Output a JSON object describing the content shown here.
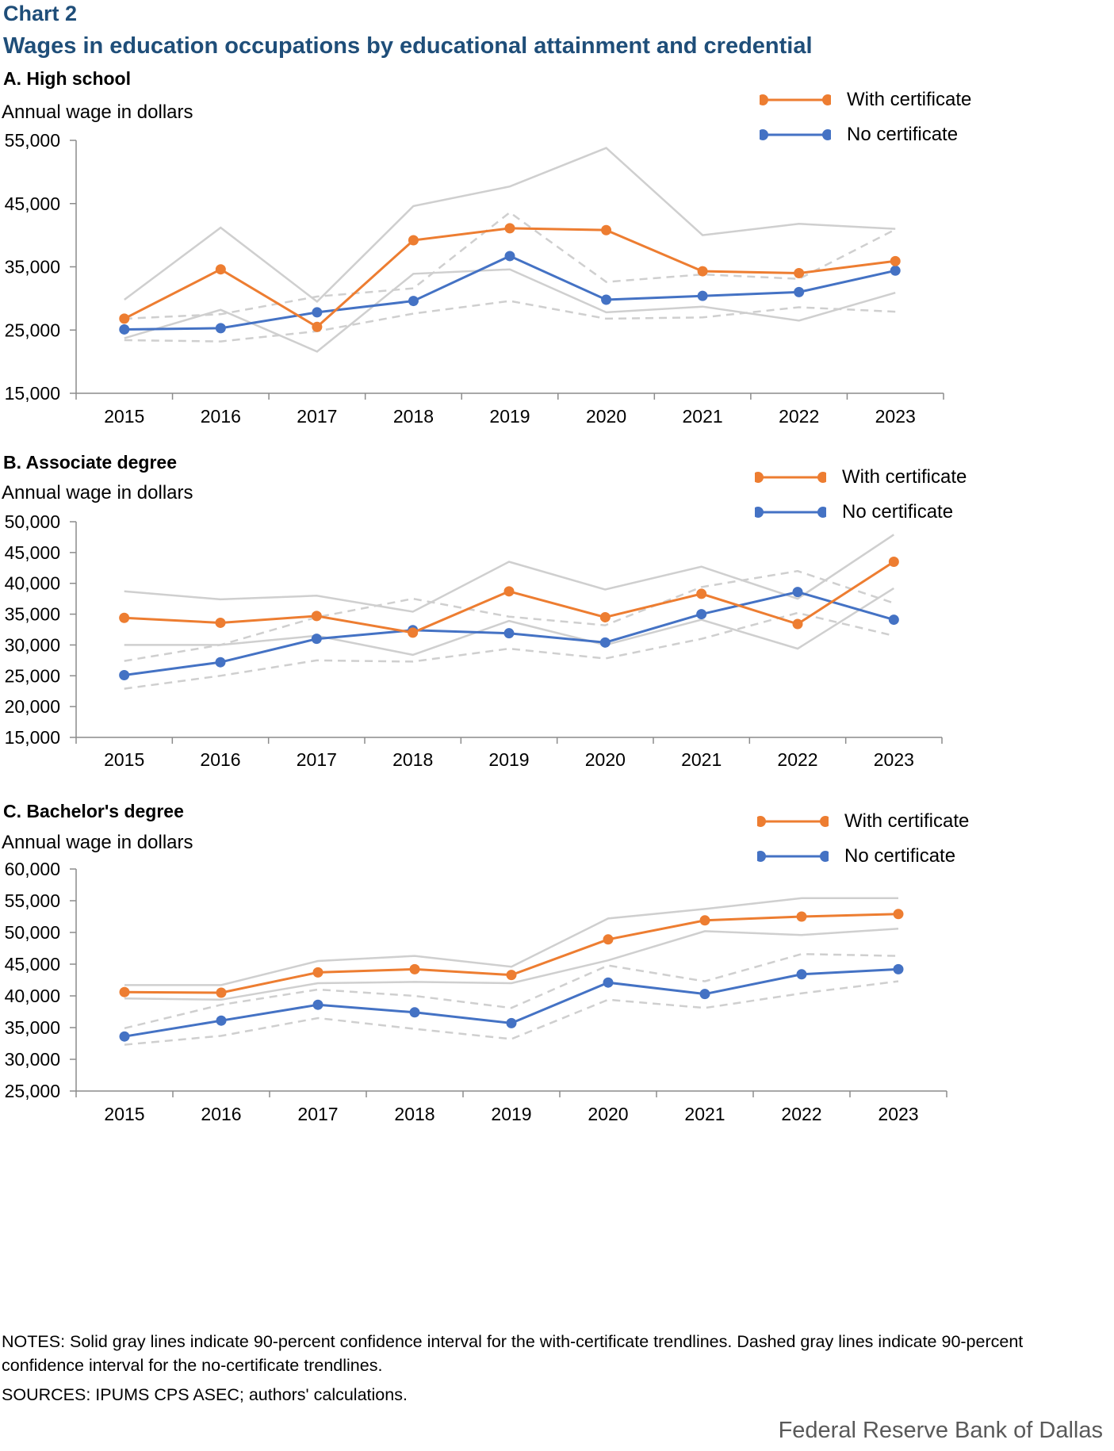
{
  "header": {
    "chart_label": "Chart 2",
    "title": "Wages in education occupations by educational attainment and credential"
  },
  "legend": {
    "with_label": "With certificate",
    "no_label": "No certificate"
  },
  "colors": {
    "with": "#ed7d31",
    "no": "#4472c4",
    "ci": "#cfcfcf",
    "title": "#1f4e79"
  },
  "chart_data": [
    {
      "type": "line",
      "panel_title": "A. High school",
      "ylabel": "Annual wage in dollars",
      "categories": [
        "2015",
        "2016",
        "2017",
        "2018",
        "2019",
        "2020",
        "2021",
        "2022",
        "2023"
      ],
      "ylim": [
        15000,
        55000
      ],
      "yticks": [
        15000,
        25000,
        35000,
        45000,
        55000
      ],
      "ytick_labels": [
        "15,000",
        "25,000",
        "35,000",
        "45,000",
        "55,000"
      ],
      "series": [
        {
          "name": "With certificate",
          "values": [
            26800,
            34600,
            25500,
            39200,
            41100,
            40800,
            34300,
            34000,
            35900
          ]
        },
        {
          "name": "No certificate",
          "values": [
            25100,
            25300,
            27800,
            29600,
            36700,
            29800,
            30400,
            31000,
            34400
          ]
        }
      ],
      "ci_with": {
        "upper": [
          29800,
          41200,
          29500,
          44600,
          47700,
          53800,
          40000,
          41800,
          41000
        ],
        "lower": [
          23700,
          28200,
          21600,
          33900,
          34600,
          27800,
          28700,
          26500,
          30900
        ]
      },
      "ci_no": {
        "upper": [
          26800,
          27500,
          30300,
          31600,
          43600,
          32600,
          33800,
          33100,
          40900
        ],
        "lower": [
          23400,
          23200,
          24800,
          27600,
          29600,
          26800,
          27000,
          28600,
          27900
        ]
      }
    },
    {
      "type": "line",
      "panel_title": "B. Associate degree",
      "ylabel": "Annual wage in dollars",
      "categories": [
        "2015",
        "2016",
        "2017",
        "2018",
        "2019",
        "2020",
        "2021",
        "2022",
        "2023"
      ],
      "ylim": [
        15000,
        50000
      ],
      "yticks": [
        15000,
        20000,
        25000,
        30000,
        35000,
        40000,
        45000,
        50000
      ],
      "ytick_labels": [
        "15,000",
        "20,000",
        "25,000",
        "30,000",
        "35,000",
        "40,000",
        "45,000",
        "50,000"
      ],
      "series": [
        {
          "name": "With certificate",
          "values": [
            34400,
            33600,
            34700,
            32000,
            38700,
            34500,
            38300,
            33400,
            43500
          ]
        },
        {
          "name": "No certificate",
          "values": [
            25100,
            27200,
            31000,
            32400,
            31900,
            30400,
            35000,
            38600,
            34100
          ]
        }
      ],
      "ci_with": {
        "upper": [
          38700,
          37400,
          38000,
          35400,
          43500,
          39000,
          42700,
          37500,
          47900
        ]
      },
      "ci_with_lower": [
        30000,
        30000,
        31500,
        28400,
        33900,
        30000,
        34100,
        29400,
        39200
      ],
      "ci_no": {
        "upper": [
          27400,
          30000,
          34500,
          37500,
          34600,
          33200,
          39400,
          42000,
          36800
        ],
        "lower": [
          22900,
          25000,
          27500,
          27300,
          29400,
          27800,
          31000,
          35200,
          31500
        ]
      }
    },
    {
      "type": "line",
      "panel_title": "C. Bachelor's degree",
      "ylabel": "Annual wage in dollars",
      "categories": [
        "2015",
        "2016",
        "2017",
        "2018",
        "2019",
        "2020",
        "2021",
        "2022",
        "2023"
      ],
      "ylim": [
        25000,
        60000
      ],
      "yticks": [
        25000,
        30000,
        35000,
        40000,
        45000,
        50000,
        55000,
        60000
      ],
      "ytick_labels": [
        "25,000",
        "30,000",
        "35,000",
        "40,000",
        "45,000",
        "50,000",
        "55,000",
        "60,000"
      ],
      "series": [
        {
          "name": "With certificate",
          "values": [
            40600,
            40500,
            43700,
            44200,
            43300,
            48900,
            51900,
            52500,
            52900
          ]
        },
        {
          "name": "No certificate",
          "values": [
            33600,
            36100,
            38600,
            37400,
            35700,
            42100,
            40300,
            43400,
            44200
          ]
        }
      ],
      "ci_with": {
        "upper": [
          41700,
          41700,
          45500,
          46300,
          44600,
          52200,
          53700,
          55400,
          55400
        ],
        "lower": [
          39600,
          39400,
          42000,
          42200,
          42000,
          45600,
          50200,
          49600,
          50600
        ]
      },
      "ci_no": {
        "upper": [
          34900,
          38600,
          41000,
          40000,
          38100,
          44800,
          42300,
          46600,
          46300
        ],
        "lower": [
          32300,
          33700,
          36500,
          34800,
          33200,
          39400,
          38100,
          40400,
          42300
        ]
      }
    }
  ],
  "footer": {
    "notes": "NOTES: Solid gray lines indicate 90-percent confidence interval for the with-certificate trendlines. Dashed gray lines indicate 90-percent confidence interval for the no-certificate trendlines.",
    "sources": "SOURCES: IPUMS CPS ASEC; authors' calculations.",
    "credit": "Federal Reserve Bank of Dallas"
  }
}
